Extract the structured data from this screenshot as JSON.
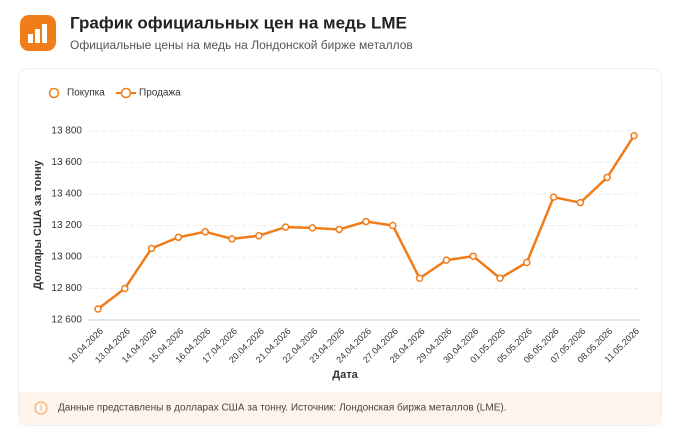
{
  "header": {
    "title": "График официальных цен на медь LME",
    "subtitle": "Официальные цены на медь на Лондонской бирже металлов"
  },
  "chart_data": {
    "type": "line",
    "x_label": "Дата",
    "y_label": "Доллары США за тонну",
    "categories": [
      "10.04.2026",
      "13.04.2026",
      "14.04.2026",
      "15.04.2026",
      "16.04.2026",
      "17.04.2026",
      "20.04.2026",
      "21.04.2026",
      "22.04.2026",
      "23.04.2026",
      "24.04.2026",
      "27.04.2026",
      "28.04.2026",
      "29.04.2026",
      "30.04.2026",
      "01.05.2026",
      "05.05.2026",
      "06.05.2026",
      "07.05.2026",
      "08.05.2026",
      "11.05.2026"
    ],
    "series": [
      {
        "name": "Покупка",
        "color": "#f07c1a",
        "values": [
          null,
          null,
          null,
          null,
          null,
          null,
          null,
          null,
          null,
          null,
          null,
          null,
          null,
          null,
          null,
          null,
          null,
          null,
          null,
          null,
          null
        ]
      },
      {
        "name": "Продажа",
        "color": "#f07c1a",
        "values": [
          12670,
          12800,
          13055,
          13125,
          13160,
          13115,
          13135,
          13190,
          13185,
          13175,
          13225,
          13200,
          12865,
          12980,
          13005,
          12865,
          12965,
          13380,
          13345,
          13505,
          13770
        ]
      }
    ],
    "ylim": [
      12600,
      13800
    ],
    "yticks": [
      {
        "value": 12600,
        "label": "12 600"
      },
      {
        "value": 12800,
        "label": "12 800"
      },
      {
        "value": 13000,
        "label": "13 000"
      },
      {
        "value": 13200,
        "label": "13 200"
      },
      {
        "value": 13400,
        "label": "13 400"
      },
      {
        "value": 13600,
        "label": "13 600"
      },
      {
        "value": 13800,
        "label": "13 800"
      }
    ],
    "grid": true
  },
  "note": "Данные представлены в долларах США за тонну. Источник: Лондонская биржа металлов (LME)."
}
